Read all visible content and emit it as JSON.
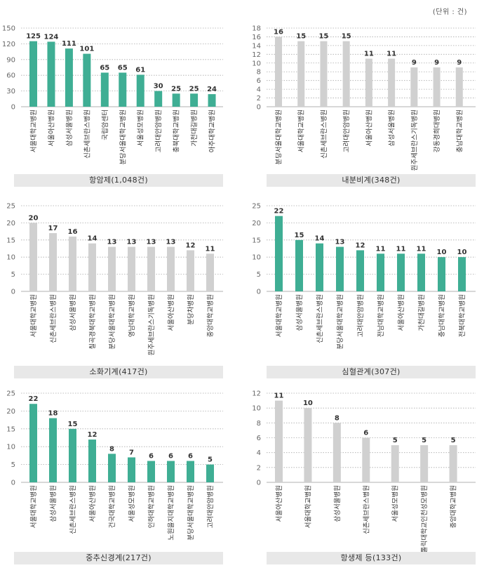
{
  "unit_label": "(단위 : 건)",
  "colors": {
    "green": "#3fae94",
    "gray": "#d0d0d0",
    "grid": "#aaaaaa"
  },
  "chart_data": [
    {
      "type": "bar",
      "title": "항암제(1,048건)",
      "color": "green",
      "ylim": [
        0,
        150
      ],
      "yticks": [
        0,
        30,
        60,
        90,
        120,
        150
      ],
      "categories": [
        "서울대학교병원",
        "서울아산병원",
        "삼성서울병원",
        "신촌세브란스병원",
        "국립암센터",
        "분당서울대학교병원",
        "서울성모병원",
        "고려대안암병원",
        "충북대학교병원",
        "가천대길병원",
        "아주대학교병원"
      ],
      "values": [
        125,
        124,
        111,
        101,
        65,
        65,
        61,
        30,
        25,
        25,
        24
      ]
    },
    {
      "type": "bar",
      "title": "내분비계(348건)",
      "color": "gray",
      "ylim": [
        0,
        18
      ],
      "yticks": [
        0,
        2,
        4,
        6,
        8,
        10,
        12,
        14,
        16,
        18
      ],
      "categories": [
        "분당서울대학교병원",
        "서울대학교병원",
        "신촌세브란스병원",
        "고려대안암병원",
        "서울아산병원",
        "삼성서울병원",
        "원주세브란스기독병원",
        "강동경희대병원",
        "충남대학교병원"
      ],
      "values": [
        16,
        15,
        15,
        15,
        11,
        11,
        9,
        9,
        9
      ]
    },
    {
      "type": "bar",
      "title": "소화기계(417건)",
      "color": "gray",
      "ylim": [
        0,
        25
      ],
      "yticks": [
        0,
        5,
        10,
        15,
        20,
        25
      ],
      "categories": [
        "서울대학교병원",
        "신촌세브란스병원",
        "삼성서울병원",
        "칠곡경북대학교병원",
        "분당서울대학교병원",
        "영남대학교병원",
        "원주세브란스기독병원",
        "서울아산병원",
        "분당차병원",
        "중앙대학교병원"
      ],
      "values": [
        20,
        17,
        16,
        14,
        13,
        13,
        13,
        13,
        12,
        11
      ]
    },
    {
      "type": "bar",
      "title": "심혈관계(307건)",
      "color": "green",
      "ylim": [
        0,
        25
      ],
      "yticks": [
        0,
        5,
        10,
        15,
        20,
        25
      ],
      "categories": [
        "서울대학교병원",
        "삼성서울병원",
        "신촌세브란스병원",
        "분당서울대학교병원",
        "고려대안암병원",
        "전남대학교병원",
        "서울아산병원",
        "가천대길병원",
        "충남대학교병원",
        "전북대학교병원"
      ],
      "values": [
        22,
        15,
        14,
        13,
        12,
        11,
        11,
        11,
        10,
        10
      ]
    },
    {
      "type": "bar",
      "title": "중추신경계(217건)",
      "color": "green",
      "ylim": [
        0,
        25
      ],
      "yticks": [
        0,
        5,
        10,
        15,
        20,
        25
      ],
      "categories": [
        "서울대학교병원",
        "삼성서울병원",
        "신촌세브란스병원",
        "서울아산병원",
        "건국대학교병원",
        "서울성모병원",
        "인하대학교병원",
        "노원을지대학교병원",
        "분당서울대학교병원",
        "고려대안암병원"
      ],
      "values": [
        22,
        18,
        15,
        12,
        8,
        7,
        6,
        6,
        6,
        5
      ]
    },
    {
      "type": "bar",
      "title": "항생제 등(133건)",
      "color": "gray",
      "ylim": [
        0,
        12
      ],
      "yticks": [
        0,
        2,
        4,
        6,
        8,
        10,
        12
      ],
      "categories": [
        "서울아산병원",
        "서울대학교병원",
        "삼성서울병원",
        "신촌세브란스병원",
        "서울성모병원",
        "가톨릭대학교인천성모병원",
        "중앙대학교병원"
      ],
      "values": [
        11,
        10,
        8,
        6,
        5,
        5,
        5
      ]
    }
  ]
}
